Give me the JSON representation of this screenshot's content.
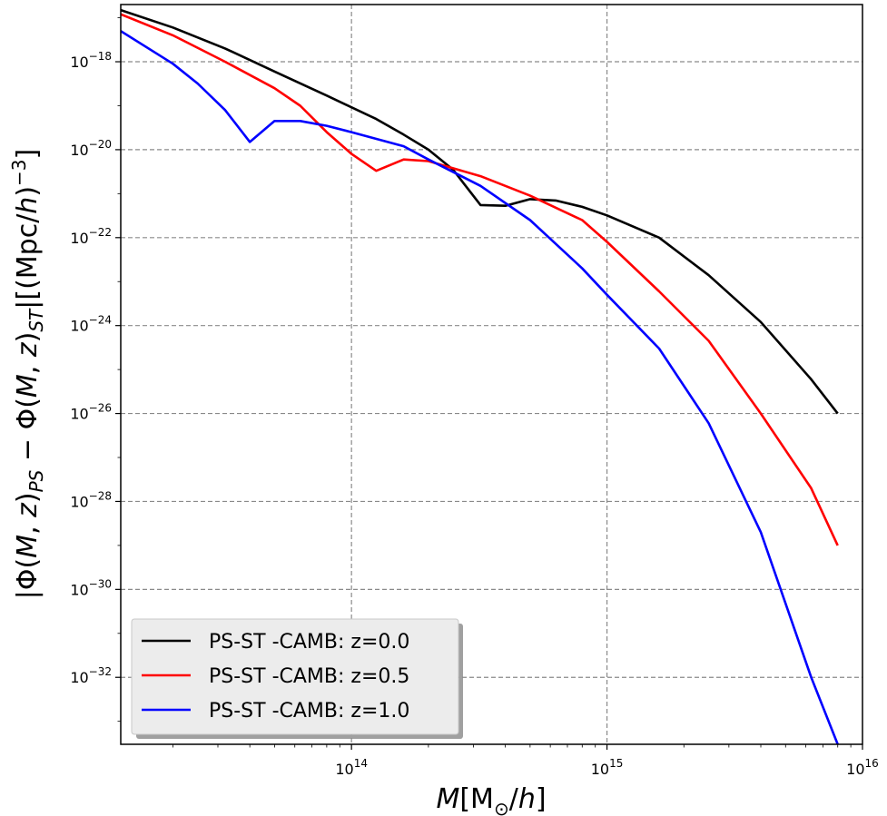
{
  "chart_data": {
    "type": "line",
    "x_scale": "log",
    "y_scale": "log",
    "xlabel": "M[M⊙/h]",
    "ylabel": "|Φ(M, z)PS − Φ(M, z)ST|[(Mpc/h)−3]",
    "xlim": [
      12500000000000.0,
      1e+16
    ],
    "ylim": [
      3e-34,
      2e-17
    ],
    "x_ticks": [
      {
        "value": 100000000000000.0,
        "base": "10",
        "exp": "14"
      },
      {
        "value": 1000000000000000.0,
        "base": "10",
        "exp": "15"
      },
      {
        "value": 1e+16,
        "base": "10",
        "exp": "16"
      }
    ],
    "y_ticks": [
      {
        "value": 1e-18,
        "base": "10",
        "exp": "−18"
      },
      {
        "value": 1e-20,
        "base": "10",
        "exp": "−20"
      },
      {
        "value": 1e-22,
        "base": "10",
        "exp": "−22"
      },
      {
        "value": 1e-24,
        "base": "10",
        "exp": "−24"
      },
      {
        "value": 1e-26,
        "base": "10",
        "exp": "−26"
      },
      {
        "value": 1e-28,
        "base": "10",
        "exp": "−28"
      },
      {
        "value": 1e-30,
        "base": "10",
        "exp": "−30"
      },
      {
        "value": 1e-32,
        "base": "10",
        "exp": "−32"
      }
    ],
    "grid": true,
    "legend_position": "lower-left",
    "series": [
      {
        "name": "PS-ST -CAMB: z=0.0",
        "color": "#000000",
        "x": [
          12500000000000.0,
          20000000000000.0,
          32000000000000.0,
          50000000000000.0,
          80000000000000.0,
          125000000000000.0,
          160000000000000.0,
          200000000000000.0,
          250000000000000.0,
          320000000000000.0,
          400000000000000.0,
          500000000000000.0,
          630000000000000.0,
          800000000000000.0,
          1000000000000000.0,
          1600000000000000.0,
          2500000000000000.0,
          4000000000000000.0,
          6300000000000000.0,
          8000000000000000.0
        ],
        "y": [
          1.5e-17,
          6e-18,
          2e-18,
          6e-19,
          1.7e-19,
          5e-20,
          2.2e-20,
          1e-20,
          3.5e-21,
          5.5e-22,
          5.3e-22,
          7.5e-22,
          7e-22,
          5e-22,
          3.2e-22,
          1e-22,
          1.4e-23,
          1.2e-24,
          6e-26,
          1e-26
        ]
      },
      {
        "name": "PS-ST -CAMB: z=0.5",
        "color": "#ff0000",
        "x": [
          12500000000000.0,
          20000000000000.0,
          32000000000000.0,
          50000000000000.0,
          63000000000000.0,
          80000000000000.0,
          100000000000000.0,
          125000000000000.0,
          160000000000000.0,
          200000000000000.0,
          320000000000000.0,
          500000000000000.0,
          800000000000000.0,
          1000000000000000.0,
          1600000000000000.0,
          2500000000000000.0,
          4000000000000000.0,
          6300000000000000.0,
          8000000000000000.0
        ],
        "y": [
          1.2e-17,
          4e-18,
          1e-18,
          2.5e-19,
          1e-19,
          2.5e-20,
          8e-21,
          3.3e-21,
          6e-21,
          5.5e-21,
          2.5e-21,
          9e-22,
          2.5e-22,
          8e-23,
          6e-24,
          4.5e-25,
          1e-26,
          2e-28,
          1e-29
        ]
      },
      {
        "name": "PS-ST -CAMB: z=1.0",
        "color": "#0000ff",
        "x": [
          12500000000000.0,
          20000000000000.0,
          25000000000000.0,
          32000000000000.0,
          40000000000000.0,
          50000000000000.0,
          63000000000000.0,
          80000000000000.0,
          100000000000000.0,
          160000000000000.0,
          200000000000000.0,
          320000000000000.0,
          500000000000000.0,
          800000000000000.0,
          1000000000000000.0,
          1600000000000000.0,
          2500000000000000.0,
          4000000000000000.0,
          6300000000000000.0,
          8000000000000000.0
        ],
        "y": [
          5e-18,
          9e-19,
          3.2e-19,
          8e-20,
          1.5e-20,
          4.5e-20,
          4.5e-20,
          3.5e-20,
          2.5e-20,
          1.2e-20,
          6e-21,
          1.5e-21,
          2.5e-22,
          2e-23,
          5e-24,
          3e-25,
          6e-27,
          2e-29,
          1e-32,
          3e-34
        ]
      }
    ]
  }
}
